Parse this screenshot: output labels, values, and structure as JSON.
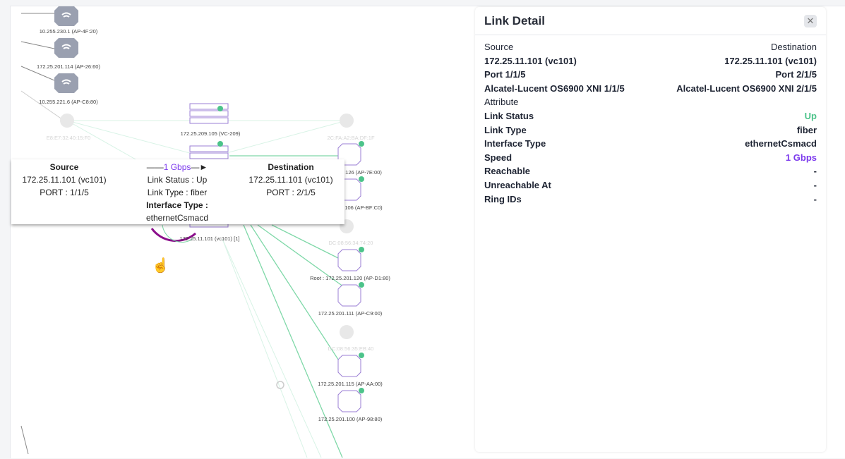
{
  "topology": {
    "nodes": [
      {
        "label": "10.255.230.1 (AP-4F:20)",
        "status": "offline"
      },
      {
        "label": "172.25.201.114 (AP-26:60)",
        "status": "offline"
      },
      {
        "label": "10.255.221.6 (AP-C8:80)",
        "status": "offline"
      },
      {
        "label": "E8:E7:32:40:15:F0",
        "status": "faded"
      },
      {
        "label": "172.25.209.105 (VC-209)",
        "status": "up"
      },
      {
        "label": "2C:FA:A2:BA:DF:1F",
        "status": "faded"
      },
      {
        "label": "126 (AP-7E:00)",
        "status": "up"
      },
      {
        "label": "106 (AP-BF:C0)",
        "status": "up"
      },
      {
        "label": "172.25.11.101 (vc101) [1]",
        "status": "up"
      },
      {
        "label": "DC:08:56:34:74:20",
        "status": "faded"
      },
      {
        "label": "Root : 172.25.201.120 (AP-D1:80)",
        "status": "up"
      },
      {
        "label": "172.25.201.111 (AP-C9:00)",
        "status": "up"
      },
      {
        "label": "DC:08:56:35:EB:40",
        "status": "faded"
      },
      {
        "label": "172.25.201.115 (AP-AA:00)",
        "status": "up"
      },
      {
        "label": "172.25.201.100 (AP-98:80)",
        "status": "up"
      }
    ],
    "colors": {
      "link_up": "#4cc38a",
      "selected_link": "#8b0f8b",
      "device": "#9b7fd4",
      "offline": "#9aa0b0"
    }
  },
  "tooltip": {
    "source_title": "Source",
    "source_device": "172.25.11.101 (vc101)",
    "source_port": "PORT : 1/1/5",
    "speed": "1 Gbps",
    "link_status": "Link Status : Up",
    "link_type": "Link Type : fiber",
    "interface_type_label": "Interface Type :",
    "interface_type": "ethernetCsmacd",
    "destination_title": "Destination",
    "destination_device": "172.25.11.101 (vc101)",
    "destination_port": "PORT : 2/1/5"
  },
  "panel": {
    "title": "Link Detail",
    "source_label": "Source",
    "destination_label": "Destination",
    "source_device": "172.25.11.101 (vc101)",
    "destination_device": "172.25.11.101 (vc101)",
    "source_port": "Port 1/1/5",
    "destination_port": "Port 2/1/5",
    "source_model": "Alcatel-Lucent OS6900 XNI 1/1/5",
    "destination_model": "Alcatel-Lucent OS6900 XNI 2/1/5",
    "attribute_label": "Attribute",
    "attributes": [
      {
        "name": "Link Status",
        "value": "Up"
      },
      {
        "name": "Link Type",
        "value": "fiber"
      },
      {
        "name": "Interface Type",
        "value": "ethernetCsmacd"
      },
      {
        "name": "Speed",
        "value": "1 Gbps"
      },
      {
        "name": "Reachable",
        "value": "-"
      },
      {
        "name": "Unreachable At",
        "value": "-"
      },
      {
        "name": "Ring IDs",
        "value": "-"
      }
    ]
  }
}
